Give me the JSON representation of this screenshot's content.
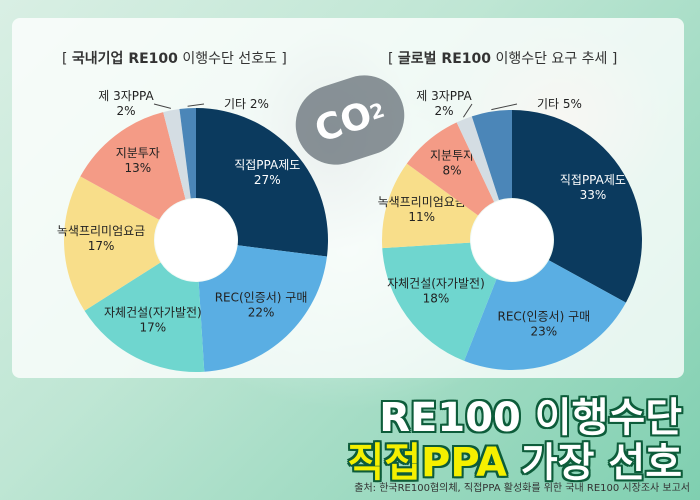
{
  "headline": {
    "line1": "RE100 이행수단",
    "line2_highlight": "직접PPA",
    "line2_rest": " 가장 선호"
  },
  "source": "출처: 한국RE100협의체, 직접PPA 활성화를 위한 국내 RE100 시장조사 보고서",
  "decor": {
    "co2_main": "CO",
    "co2_sub": "2"
  },
  "colors": {
    "직접PPA제도": "#0b3a5e",
    "REC(인증서) 구매": "#5aaee3",
    "자체건설(자가발전)": "#6fd6cf",
    "녹색프리미엄요금": "#f8de8a",
    "지분투자": "#f49b86",
    "제 3자PPA": "#d4dde3",
    "기타": "#4b86b8"
  },
  "chart_data": [
    {
      "type": "pie",
      "title_prefix": "[ ",
      "title_bold": "국내기업 RE100",
      "title_rest": " 이행수단 선호도 ]",
      "categories": [
        "직접PPA제도",
        "REC(인증서) 구매",
        "자체건설(자가발전)",
        "녹색프리미엄요금",
        "지분투자",
        "제 3자PPA",
        "기타"
      ],
      "values": [
        27,
        22,
        17,
        17,
        13,
        2,
        2
      ],
      "unit": "%"
    },
    {
      "type": "pie",
      "title_prefix": "[ ",
      "title_bold": "글로벌 RE100",
      "title_rest": " 이행수단 요구 추세 ]",
      "categories": [
        "직접PPA제도",
        "REC(인증서) 구매",
        "자체건설(자가발전)",
        "녹색프리미엄요금",
        "지분투자",
        "제 3자PPA",
        "기타"
      ],
      "values": [
        33,
        23,
        18,
        11,
        8,
        2,
        5
      ],
      "unit": "%"
    }
  ]
}
